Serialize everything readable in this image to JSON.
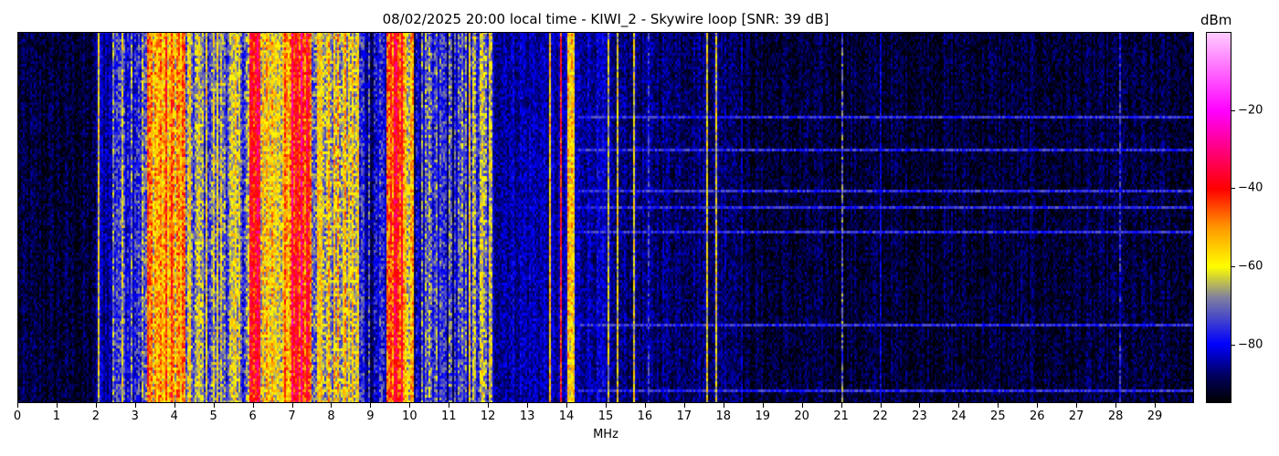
{
  "chart_data": {
    "type": "heatmap",
    "title": "08/02/2025 20:00 local time - KIWI_2 - Skywire loop [SNR: 39 dB]",
    "xlabel": "MHz",
    "xlim": [
      0,
      30
    ],
    "xticks": [
      0,
      1,
      2,
      3,
      4,
      5,
      6,
      7,
      8,
      9,
      10,
      11,
      12,
      13,
      14,
      15,
      16,
      17,
      18,
      19,
      20,
      21,
      22,
      23,
      24,
      25,
      26,
      27,
      28,
      29
    ],
    "colorbar": {
      "label": "dBm",
      "range": [
        -95,
        0
      ],
      "ticks": [
        -20,
        -40,
        -60,
        -80
      ],
      "colormap": [
        {
          "v": -95,
          "c": "#000000"
        },
        {
          "v": -88,
          "c": "#000060"
        },
        {
          "v": -80,
          "c": "#0000ff"
        },
        {
          "v": -68,
          "c": "#8080a0"
        },
        {
          "v": -60,
          "c": "#ffff00"
        },
        {
          "v": -50,
          "c": "#ff9900"
        },
        {
          "v": -40,
          "c": "#ff0000"
        },
        {
          "v": -20,
          "c": "#ff00ff"
        },
        {
          "v": 0,
          "c": "#ffccff"
        }
      ]
    },
    "rows": 136,
    "bands": [
      {
        "from": 0,
        "to": 2.0,
        "dbm": -91
      },
      {
        "from": 2.0,
        "to": 2.4,
        "dbm": -84
      },
      {
        "from": 2.4,
        "to": 3.3,
        "dbm": -72
      },
      {
        "from": 3.3,
        "to": 4.3,
        "dbm": -52
      },
      {
        "from": 4.3,
        "to": 5.9,
        "dbm": -68
      },
      {
        "from": 5.9,
        "to": 6.2,
        "dbm": -42
      },
      {
        "from": 6.2,
        "to": 7.0,
        "dbm": -56
      },
      {
        "from": 7.0,
        "to": 7.5,
        "dbm": -38
      },
      {
        "from": 7.5,
        "to": 8.7,
        "dbm": -62
      },
      {
        "from": 8.7,
        "to": 9.4,
        "dbm": -79
      },
      {
        "from": 9.4,
        "to": 9.9,
        "dbm": -45
      },
      {
        "from": 9.9,
        "to": 10.1,
        "dbm": -62
      },
      {
        "from": 10.1,
        "to": 11.5,
        "dbm": -78
      },
      {
        "from": 11.5,
        "to": 12.1,
        "dbm": -72
      },
      {
        "from": 12.1,
        "to": 14.0,
        "dbm": -84
      },
      {
        "from": 14.0,
        "to": 14.2,
        "dbm": -58
      },
      {
        "from": 14.2,
        "to": 15.0,
        "dbm": -84
      },
      {
        "from": 15.0,
        "to": 18.5,
        "dbm": -87
      },
      {
        "from": 18.5,
        "to": 30,
        "dbm": -91
      }
    ],
    "carriers": [
      {
        "mhz": 2.05,
        "dbm": -60
      },
      {
        "mhz": 11.55,
        "dbm": -58
      },
      {
        "mhz": 11.85,
        "dbm": -60
      },
      {
        "mhz": 12.05,
        "dbm": -60
      },
      {
        "mhz": 13.6,
        "dbm": -55
      },
      {
        "mhz": 13.85,
        "dbm": -40
      },
      {
        "mhz": 15.05,
        "dbm": -62
      },
      {
        "mhz": 15.3,
        "dbm": -60
      },
      {
        "mhz": 15.7,
        "dbm": -60
      },
      {
        "mhz": 16.1,
        "dbm": -78
      },
      {
        "mhz": 17.6,
        "dbm": -60
      },
      {
        "mhz": 17.8,
        "dbm": -60
      },
      {
        "mhz": 21.05,
        "dbm": -72
      },
      {
        "mhz": 22.0,
        "dbm": -82
      },
      {
        "mhz": 28.1,
        "dbm": -78
      }
    ],
    "interference_rows": {
      "from_mhz": 14.3,
      "dbm": -76,
      "rows": [
        31,
        43,
        58,
        64,
        73,
        107,
        131
      ]
    }
  }
}
